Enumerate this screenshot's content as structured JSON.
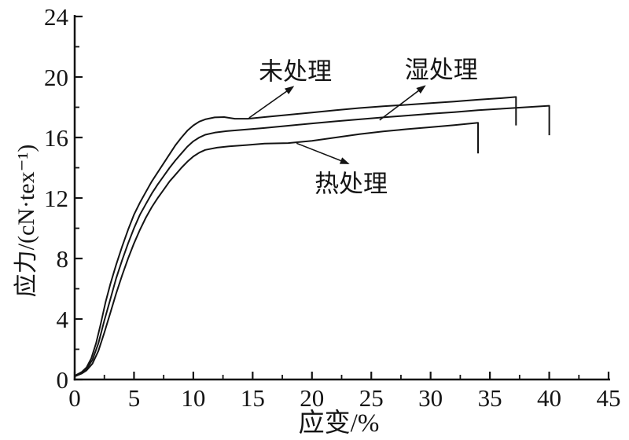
{
  "figure": {
    "background": "#ffffff",
    "ink_color": "#141414"
  },
  "chart_data": {
    "type": "line",
    "title": "",
    "xlabel": "应变/%",
    "ylabel": "应力/(cN·tex⁻¹)",
    "xlim": [
      0,
      45
    ],
    "ylim": [
      0,
      24
    ],
    "x_major_ticks": [
      0,
      5,
      10,
      15,
      20,
      25,
      30,
      35,
      40,
      45
    ],
    "x_minor_ticks": [
      2.5,
      7.5,
      12.5,
      17.5,
      22.5,
      27.5,
      32.5,
      37.5,
      42.5
    ],
    "y_major_ticks": [
      0,
      4,
      8,
      12,
      16,
      20,
      24
    ],
    "y_minor_ticks": [
      2,
      6,
      10,
      14,
      18,
      22
    ],
    "grid": false,
    "legend_position": "none (curves labeled by arrow annotations)",
    "series": [
      {
        "name": "未处理",
        "break_strain_percent": 37.2,
        "break_stress": 18.7,
        "points": [
          [
            0,
            0.25
          ],
          [
            0.6,
            0.5
          ],
          [
            1,
            0.8
          ],
          [
            1.4,
            1.4
          ],
          [
            1.8,
            2.4
          ],
          [
            2.2,
            3.7
          ],
          [
            2.6,
            5.1
          ],
          [
            3,
            6.3
          ],
          [
            3.5,
            7.6
          ],
          [
            4,
            8.8
          ],
          [
            4.5,
            9.9
          ],
          [
            5,
            10.9
          ],
          [
            5.5,
            11.7
          ],
          [
            6,
            12.4
          ],
          [
            6.5,
            13.1
          ],
          [
            7,
            13.7
          ],
          [
            7.5,
            14.3
          ],
          [
            8,
            14.9
          ],
          [
            8.5,
            15.5
          ],
          [
            9,
            16.0
          ],
          [
            9.5,
            16.45
          ],
          [
            10,
            16.8
          ],
          [
            10.5,
            17.05
          ],
          [
            11,
            17.2
          ],
          [
            11.8,
            17.33
          ],
          [
            12.6,
            17.35
          ],
          [
            13.5,
            17.24
          ],
          [
            14.6,
            17.24
          ],
          [
            16,
            17.35
          ],
          [
            18,
            17.5
          ],
          [
            20,
            17.65
          ],
          [
            22,
            17.8
          ],
          [
            24,
            17.95
          ],
          [
            26,
            18.06
          ],
          [
            28,
            18.16
          ],
          [
            30,
            18.27
          ],
          [
            32,
            18.38
          ],
          [
            34,
            18.5
          ],
          [
            36,
            18.6
          ],
          [
            37.2,
            18.68
          ],
          [
            37.2,
            16.8
          ]
        ]
      },
      {
        "name": "湿处理",
        "break_strain_percent": 40,
        "break_stress": 18.1,
        "points": [
          [
            0,
            0.22
          ],
          [
            0.6,
            0.45
          ],
          [
            1,
            0.7
          ],
          [
            1.5,
            1.3
          ],
          [
            2,
            2.4
          ],
          [
            2.5,
            3.9
          ],
          [
            3,
            5.3
          ],
          [
            3.5,
            6.7
          ],
          [
            4,
            7.9
          ],
          [
            4.5,
            9.0
          ],
          [
            5,
            10.0
          ],
          [
            5.5,
            10.9
          ],
          [
            6,
            11.6
          ],
          [
            6.5,
            12.3
          ],
          [
            7,
            12.9
          ],
          [
            7.5,
            13.45
          ],
          [
            8,
            14.0
          ],
          [
            8.5,
            14.5
          ],
          [
            9,
            14.95
          ],
          [
            9.5,
            15.4
          ],
          [
            10,
            15.75
          ],
          [
            10.5,
            16.0
          ],
          [
            11,
            16.18
          ],
          [
            11.8,
            16.32
          ],
          [
            12.8,
            16.42
          ],
          [
            14,
            16.5
          ],
          [
            16,
            16.63
          ],
          [
            18,
            16.78
          ],
          [
            20,
            16.93
          ],
          [
            22,
            17.07
          ],
          [
            24,
            17.2
          ],
          [
            26,
            17.33
          ],
          [
            28,
            17.45
          ],
          [
            30,
            17.57
          ],
          [
            32,
            17.68
          ],
          [
            34,
            17.8
          ],
          [
            36,
            17.9
          ],
          [
            38,
            18.0
          ],
          [
            40,
            18.1
          ],
          [
            40,
            16.15
          ]
        ]
      },
      {
        "name": "热处理",
        "break_strain_percent": 34,
        "break_stress": 17.0,
        "points": [
          [
            0,
            0.2
          ],
          [
            0.6,
            0.4
          ],
          [
            1,
            0.6
          ],
          [
            1.5,
            1.05
          ],
          [
            2,
            1.9
          ],
          [
            2.5,
            3.1
          ],
          [
            3,
            4.4
          ],
          [
            3.5,
            5.7
          ],
          [
            4,
            6.9
          ],
          [
            4.5,
            8.0
          ],
          [
            5,
            9.0
          ],
          [
            5.5,
            9.9
          ],
          [
            6,
            10.7
          ],
          [
            6.5,
            11.4
          ],
          [
            7,
            12.0
          ],
          [
            7.5,
            12.55
          ],
          [
            8,
            13.1
          ],
          [
            8.5,
            13.55
          ],
          [
            9,
            14.0
          ],
          [
            9.5,
            14.4
          ],
          [
            10,
            14.75
          ],
          [
            10.5,
            15.0
          ],
          [
            11,
            15.18
          ],
          [
            12,
            15.33
          ],
          [
            13,
            15.42
          ],
          [
            14.5,
            15.5
          ],
          [
            16,
            15.6
          ],
          [
            18,
            15.63
          ],
          [
            20,
            15.78
          ],
          [
            22,
            16.0
          ],
          [
            24,
            16.22
          ],
          [
            26,
            16.4
          ],
          [
            28,
            16.55
          ],
          [
            30,
            16.68
          ],
          [
            32,
            16.82
          ],
          [
            34,
            16.97
          ],
          [
            34,
            14.95
          ]
        ]
      }
    ],
    "annotations": [
      {
        "text": "未处理",
        "label_at": [
          18.6,
          20.5
        ],
        "arrow_from": [
          14.7,
          17.3
        ],
        "arrow_to": [
          18.4,
          19.35
        ]
      },
      {
        "text": "湿处理",
        "label_at": [
          30.9,
          20.6
        ],
        "arrow_from": [
          25.7,
          17.15
        ],
        "arrow_to": [
          29.5,
          19.4
        ]
      },
      {
        "text": "热处理",
        "label_at": [
          23.3,
          13.1
        ],
        "arrow_from": [
          18.7,
          15.62
        ],
        "arrow_to": [
          23.05,
          14.28
        ]
      }
    ]
  }
}
